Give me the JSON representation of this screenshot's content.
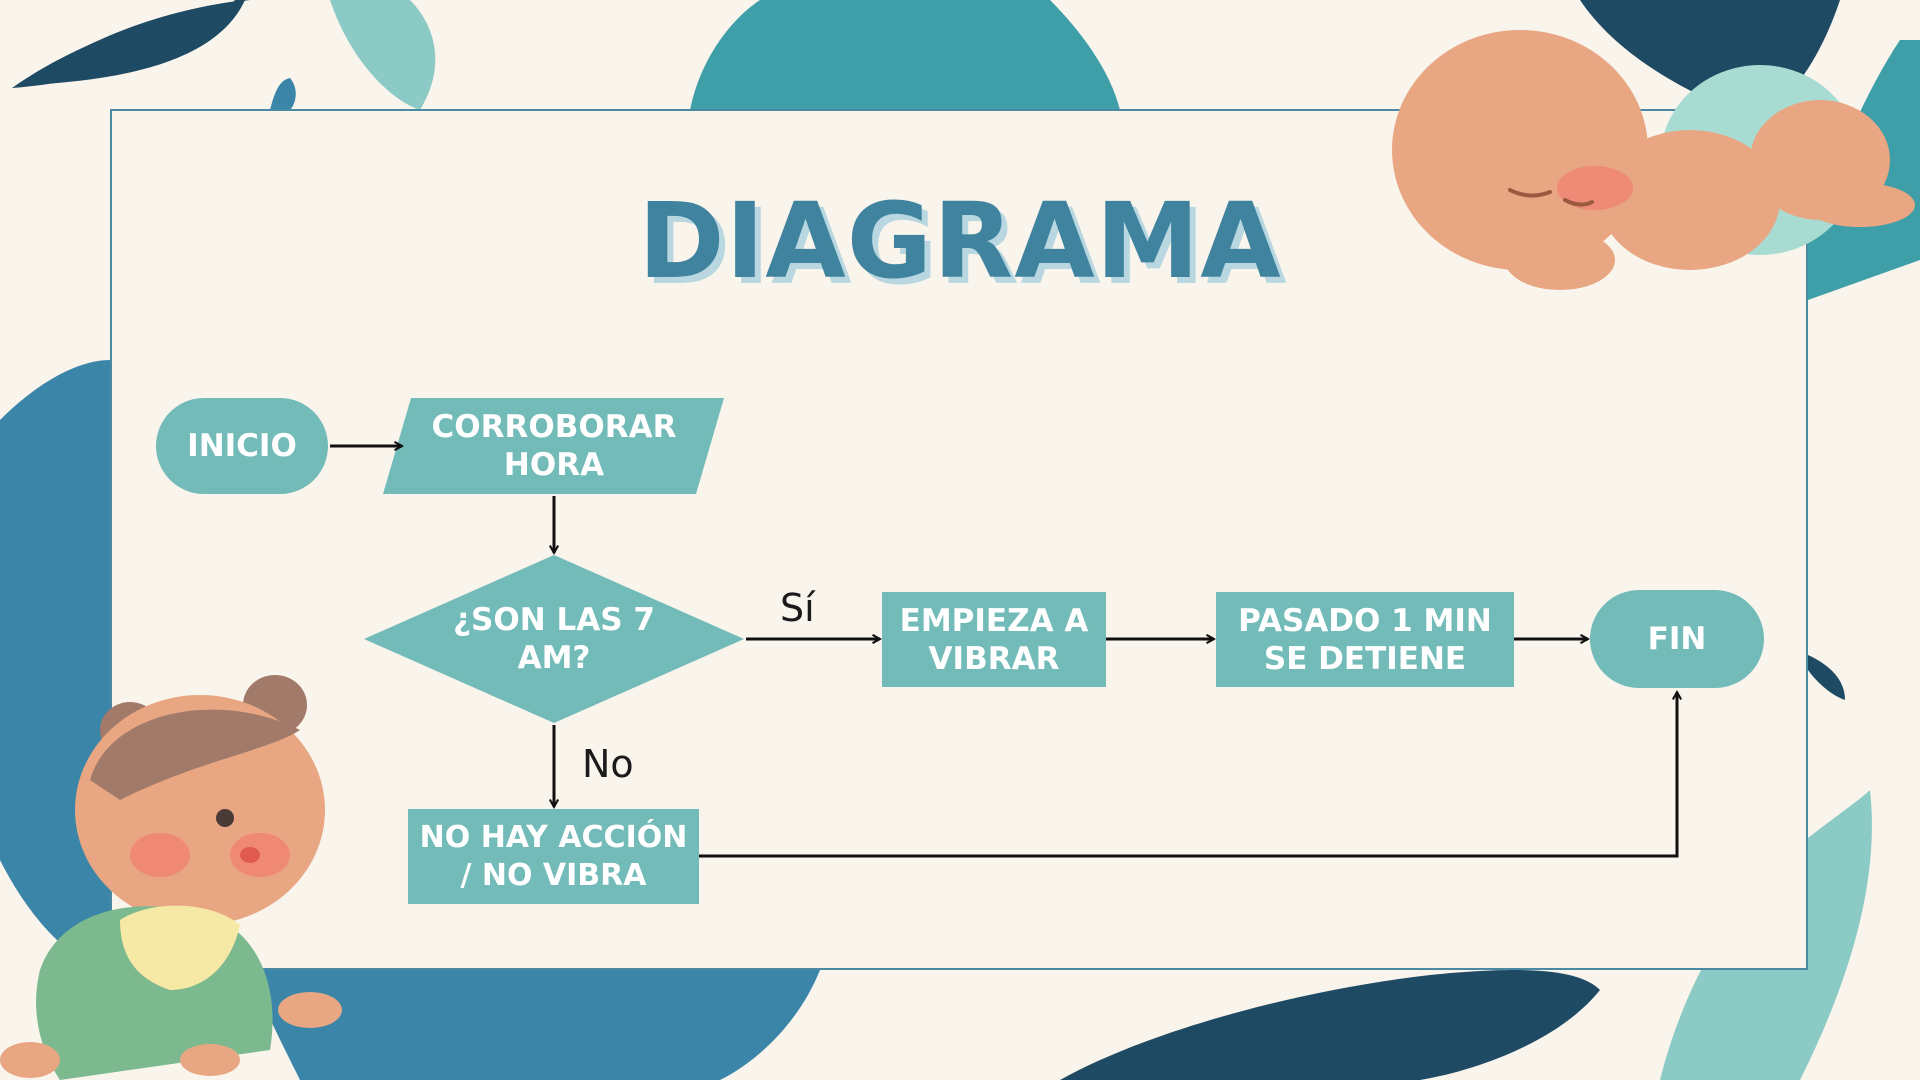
{
  "slide": {
    "title": "DIAGRAMA",
    "colors": {
      "background": "#f9f4ec",
      "frame_border": "#4a89a3",
      "title": "#3f839f",
      "title_shadow": "#b8d7e0",
      "node_fill": "#73bbb8",
      "node_text": "#ffffff",
      "arrow": "#111111",
      "leaf_dark": "#1e4a63",
      "leaf_mid": "#3b86a8",
      "leaf_teal": "#3e9fa8",
      "leaf_light": "#8ccbc5"
    }
  },
  "flowchart": {
    "nodes": [
      {
        "id": "inicio",
        "shape": "terminal",
        "label": "INICIO"
      },
      {
        "id": "corroborar",
        "shape": "input-output",
        "label": "CORROBORAR\nHORA"
      },
      {
        "id": "decision",
        "shape": "decision",
        "label": "¿SON LAS 7\nAM?"
      },
      {
        "id": "vibrar",
        "shape": "process",
        "label": "EMPIEZA A\nVIBRAR"
      },
      {
        "id": "detiene",
        "shape": "process",
        "label": "PASADO 1 MIN\nSE DETIENE"
      },
      {
        "id": "fin",
        "shape": "terminal",
        "label": "FIN"
      },
      {
        "id": "no_accion",
        "shape": "process",
        "label": "NO HAY ACCIÓN\n/ NO VIBRA"
      }
    ],
    "edges": [
      {
        "from": "inicio",
        "to": "corroborar",
        "label": ""
      },
      {
        "from": "corroborar",
        "to": "decision",
        "label": ""
      },
      {
        "from": "decision",
        "to": "vibrar",
        "label": "Sí"
      },
      {
        "from": "vibrar",
        "to": "detiene",
        "label": ""
      },
      {
        "from": "detiene",
        "to": "fin",
        "label": ""
      },
      {
        "from": "decision",
        "to": "no_accion",
        "label": "No"
      },
      {
        "from": "no_accion",
        "to": "fin",
        "label": ""
      }
    ]
  },
  "illustrations": [
    {
      "name": "sleeping-baby-illustration"
    },
    {
      "name": "crawling-baby-illustration"
    }
  ]
}
